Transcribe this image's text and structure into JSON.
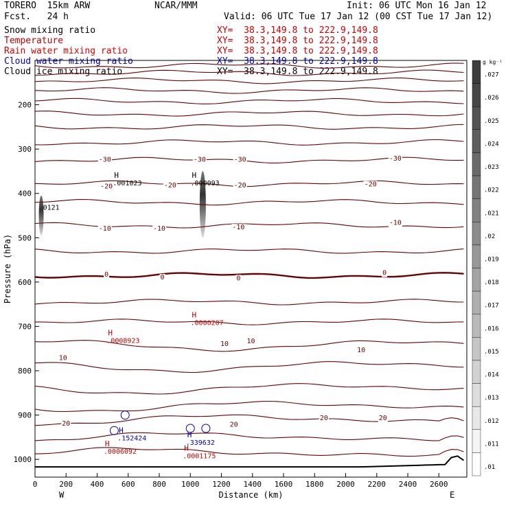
{
  "header": {
    "model": "TORERO  15km ARW",
    "org": "NCAR/MMM",
    "init": "Init: 06 UTC Mon 16 Jan 12",
    "fcst": "Fcst.   24 h",
    "valid": "Valid: 06 UTC Tue 17 Jan 12 (00 CST Tue 17 Jan 12)"
  },
  "fields": [
    {
      "name": "Snow mixing ratio",
      "xy": "XY=  38.3,149.8 to 222.9,149.8",
      "color": "#000000"
    },
    {
      "name": "Temperature",
      "xy": "XY=  38.3,149.8 to 222.9,149.8",
      "color": "#c00000"
    },
    {
      "name": "Rain water mixing ratio",
      "xy": "XY=  38.3,149.8 to 222.9,149.8",
      "color": "#e00000"
    },
    {
      "name": "Cloud water mixing ratio",
      "xy": "XY=  38.3,149.8 to 222.9,149.8",
      "color": "#0000c0"
    },
    {
      "name": "Cloud ice mixing ratio",
      "xy": "XY=  38.3,149.8 to 222.9,149.8",
      "color": "#000000"
    }
  ],
  "chart_data": {
    "type": "cross-section",
    "xlabel": "Distance (km)",
    "ylabel": "Pressure (hPa)",
    "xlim": [
      0,
      2780
    ],
    "ylim": [
      100,
      1040
    ],
    "x_ticks": [
      "0",
      "200",
      "400",
      "600",
      "800",
      "1000",
      "1200",
      "1400",
      "1600",
      "1800",
      "2000",
      "2200",
      "2400",
      "2600"
    ],
    "y_ticks": [
      "200",
      "300",
      "400",
      "500",
      "600",
      "700",
      "800",
      "900",
      "1000"
    ],
    "left_end_label": "W",
    "right_end_label": "E",
    "colorbar": {
      "unit": "g kg⁻¹",
      "ticks": [
        ".027",
        ".026",
        ".025",
        ".024",
        ".023",
        ".022",
        ".021",
        ".02",
        ".019",
        ".018",
        ".017",
        ".016",
        ".015",
        ".014",
        ".013",
        ".012",
        ".011",
        ".01"
      ]
    },
    "temperature_contours": [
      {
        "label": "-30",
        "pressure": 325
      },
      {
        "label": "-20",
        "pressure": 378
      },
      {
        "label": "-10",
        "pressure": 472
      },
      {
        "label": "0",
        "pressure": 585
      },
      {
        "label": "10",
        "pressure": 742
      },
      {
        "label": "20",
        "pressure": 910
      }
    ],
    "contour_labels": [
      {
        "text": "-30",
        "x": 450,
        "p": 322,
        "color": "#6b0000"
      },
      {
        "text": "-30",
        "x": 1060,
        "p": 322,
        "color": "#6b0000"
      },
      {
        "text": "-30",
        "x": 1320,
        "p": 322,
        "color": "#6b0000"
      },
      {
        "text": "-30",
        "x": 2320,
        "p": 320,
        "color": "#6b0000"
      },
      {
        "text": "-20",
        "x": 460,
        "p": 383,
        "color": "#6b0000"
      },
      {
        "text": "-20",
        "x": 870,
        "p": 380,
        "color": "#6b0000"
      },
      {
        "text": "-20",
        "x": 1320,
        "p": 380,
        "color": "#6b0000"
      },
      {
        "text": "-20",
        "x": 2160,
        "p": 378,
        "color": "#6b0000"
      },
      {
        "text": "-10",
        "x": 450,
        "p": 478,
        "color": "#6b0000"
      },
      {
        "text": "-10",
        "x": 800,
        "p": 478,
        "color": "#6b0000"
      },
      {
        "text": "-10",
        "x": 1310,
        "p": 475,
        "color": "#6b0000"
      },
      {
        "text": "-10",
        "x": 2320,
        "p": 465,
        "color": "#6b0000"
      },
      {
        "text": "0",
        "x": 460,
        "p": 582,
        "color": "#6b0000"
      },
      {
        "text": "0",
        "x": 820,
        "p": 588,
        "color": "#6b0000"
      },
      {
        "text": "0",
        "x": 1310,
        "p": 590,
        "color": "#6b0000"
      },
      {
        "text": "0",
        "x": 2250,
        "p": 578,
        "color": "#6b0000"
      },
      {
        "text": "10",
        "x": 180,
        "p": 770,
        "color": "#6b0000"
      },
      {
        "text": "10",
        "x": 1220,
        "p": 738,
        "color": "#6b0000"
      },
      {
        "text": "10",
        "x": 1390,
        "p": 732,
        "color": "#6b0000"
      },
      {
        "text": "10",
        "x": 2100,
        "p": 752,
        "color": "#6b0000"
      },
      {
        "text": "20",
        "x": 200,
        "p": 918,
        "color": "#6b0000"
      },
      {
        "text": "20",
        "x": 1280,
        "p": 920,
        "color": "#6b0000"
      },
      {
        "text": "20",
        "x": 1860,
        "p": 905,
        "color": "#6b0000"
      },
      {
        "text": "20",
        "x": 2240,
        "p": 905,
        "color": "#6b0000"
      }
    ],
    "extrema": [
      {
        "h": "H",
        "value": ".001023",
        "x": 510,
        "p": 365,
        "color": "#000000"
      },
      {
        "h": "H",
        "value": ".000093",
        "x": 1010,
        "p": 365,
        "color": "#000000"
      },
      {
        "h": "",
        "value": "0121",
        "x": 60,
        "p": 420,
        "color": "#000000"
      },
      {
        "h": "H",
        "value": ".0000207",
        "x": 1010,
        "p": 680,
        "color": "#c00000"
      },
      {
        "h": "H",
        "value": ".0008923",
        "x": 470,
        "p": 720,
        "color": "#c00000"
      },
      {
        "h": "H",
        "value": ".152424",
        "x": 540,
        "p": 940,
        "color": "#0000c0"
      },
      {
        "h": "H",
        "value": ".339632",
        "x": 980,
        "p": 950,
        "color": "#0000c0"
      },
      {
        "h": "H",
        "value": ".0006092",
        "x": 450,
        "p": 970,
        "color": "#c00000"
      },
      {
        "h": "H",
        "value": ".0001175",
        "x": 960,
        "p": 980,
        "color": "#c00000"
      }
    ]
  }
}
